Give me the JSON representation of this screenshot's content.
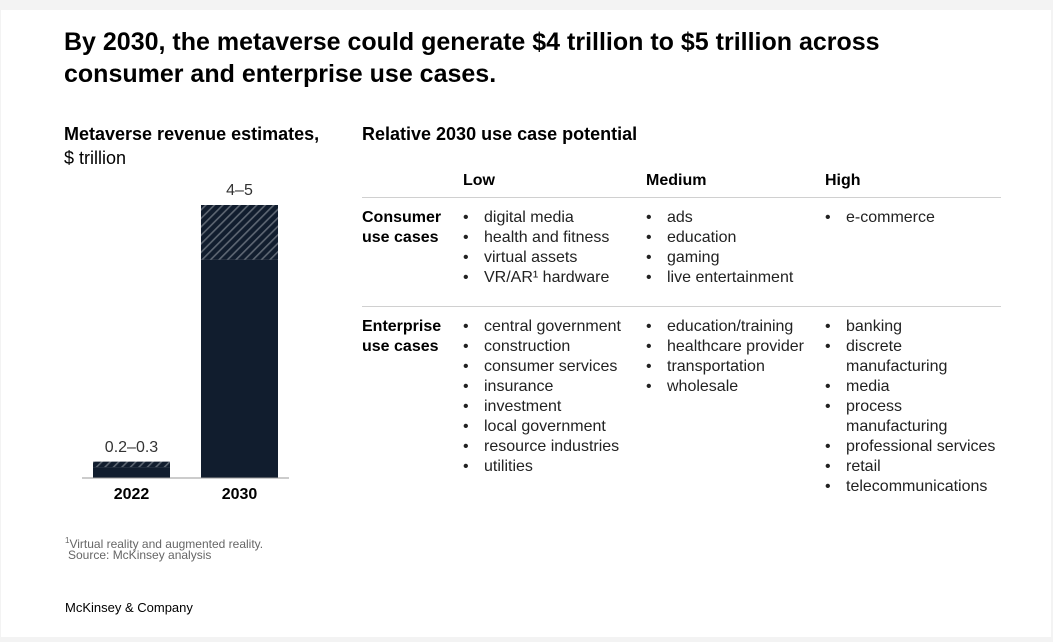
{
  "title": "By 2030, the metaverse could generate $4 trillion to $5 trillion across consumer and enterprise use cases.",
  "chart_data": {
    "type": "range-bar",
    "title": "Metaverse revenue estimates,",
    "subtitle": "$ trillion",
    "categories": [
      "2022",
      "2030"
    ],
    "low": [
      0.2,
      4
    ],
    "high": [
      0.3,
      5
    ],
    "value_labels": [
      "0.2–0.3",
      "4–5"
    ],
    "ylim": [
      0,
      5
    ],
    "color": "#111d2e"
  },
  "table": {
    "title": "Relative 2030 use case potential",
    "columns": [
      "Low",
      "Medium",
      "High"
    ],
    "rows": [
      {
        "label": "Consumer use cases",
        "cells": [
          [
            "digital media",
            "health and fitness",
            "virtual assets",
            "VR/AR¹ hardware"
          ],
          [
            "ads",
            "education",
            "gaming",
            "live entertainment"
          ],
          [
            "e-commerce"
          ]
        ]
      },
      {
        "label": "Enterprise use cases",
        "cells": [
          [
            "central government",
            "construction",
            "consumer services",
            "insurance",
            "investment",
            "local government",
            "resource industries",
            "utilities"
          ],
          [
            "education/training",
            "healthcare provider",
            "transportation",
            "wholesale"
          ],
          [
            "banking",
            "discrete manufacturing",
            "media",
            "process manufacturing",
            "professional services",
            "retail",
            "telecommunications"
          ]
        ]
      }
    ]
  },
  "footnote_marker": "1",
  "footnote": "Virtual reality and augmented reality.",
  "source": "Source: McKinsey analysis",
  "brand": "McKinsey & Company"
}
